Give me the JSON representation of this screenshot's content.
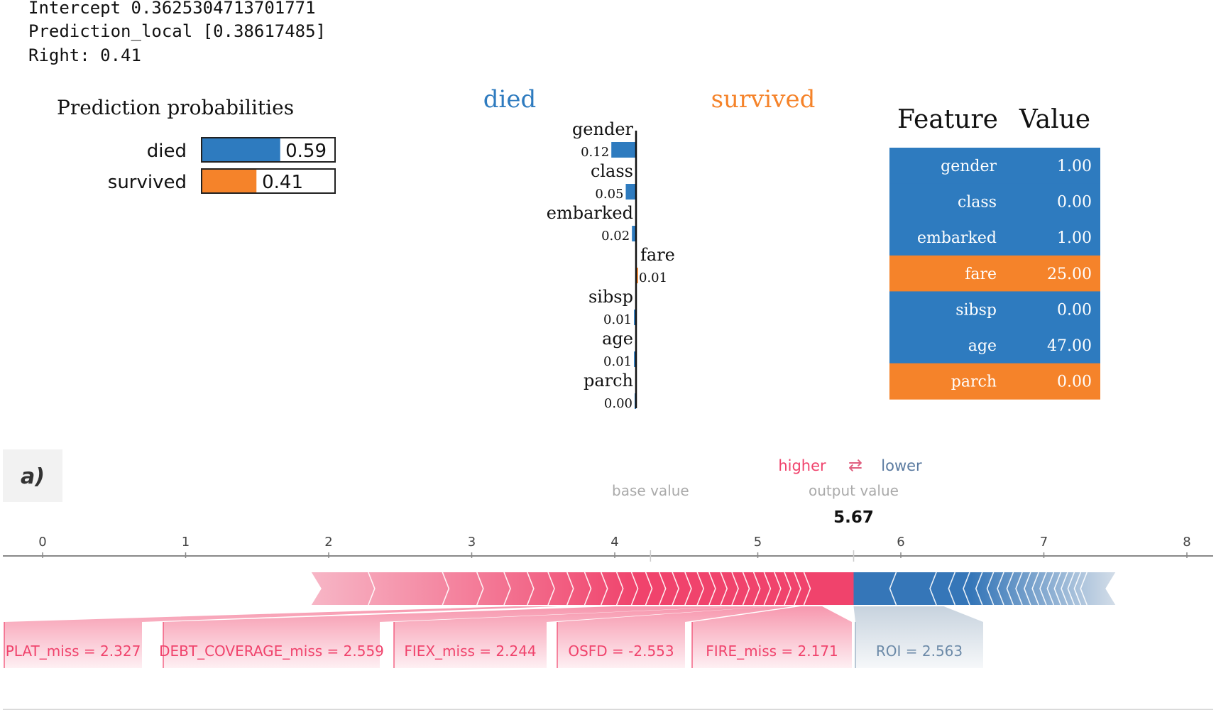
{
  "console": {
    "lines": [
      "Intercept 0.3625304713701771",
      "Prediction_local [0.38617485]",
      "Right: 0.41"
    ]
  },
  "colors": {
    "died": "#2e7bbf",
    "survived": "#f5832a",
    "shap_positive": "#f0436c",
    "shap_negative": "#3576b8"
  },
  "chart_data": [
    {
      "type": "bar",
      "title": "Prediction probabilities",
      "categories": [
        "died",
        "survived"
      ],
      "values": [
        0.59,
        0.41
      ],
      "value_labels": [
        "0.59",
        "0.41"
      ],
      "xlim": [
        0,
        1
      ]
    },
    {
      "type": "bar",
      "class_labels": [
        "died",
        "survived"
      ],
      "categories": [
        "gender",
        "class",
        "embarked",
        "fare",
        "sibsp",
        "age",
        "parch"
      ],
      "values": [
        -0.12,
        -0.05,
        -0.02,
        0.01,
        -0.01,
        -0.01,
        0.0
      ],
      "value_labels": [
        "0.12",
        "0.05",
        "0.02",
        "0.01",
        "0.01",
        "0.01",
        "0.00"
      ]
    },
    {
      "type": "table",
      "headers": [
        "Feature",
        "Value"
      ],
      "rows": [
        {
          "feature": "gender",
          "value": "1.00",
          "class": "died"
        },
        {
          "feature": "class",
          "value": "0.00",
          "class": "died"
        },
        {
          "feature": "embarked",
          "value": "1.00",
          "class": "died"
        },
        {
          "feature": "fare",
          "value": "25.00",
          "class": "survived"
        },
        {
          "feature": "sibsp",
          "value": "0.00",
          "class": "died"
        },
        {
          "feature": "age",
          "value": "47.00",
          "class": "died"
        },
        {
          "feature": "parch",
          "value": "0.00",
          "class": "survived"
        }
      ]
    },
    {
      "type": "bar",
      "panel_label": "a)",
      "legend": {
        "higher": "higher",
        "arrows": "⇄",
        "lower": "lower"
      },
      "base_value_label": "base value",
      "output_value_label": "output value",
      "output_value": 5.67,
      "output_value_text": "5.67",
      "base_value": 4.25,
      "xlim": [
        0,
        8
      ],
      "ticks": [
        0,
        1,
        2,
        3,
        4,
        5,
        6,
        7,
        8
      ],
      "positive_range": [
        1.88,
        5.67
      ],
      "negative_range": [
        5.67,
        7.5
      ],
      "features": [
        {
          "label": "PLAT_miss = 2.327",
          "effect": "positive"
        },
        {
          "label": "DEBT_COVERAGE_miss = 2.559",
          "effect": "positive"
        },
        {
          "label": "FIEX_miss = 2.244",
          "effect": "positive"
        },
        {
          "label": "OSFD = -2.553",
          "effect": "positive"
        },
        {
          "label": "FIRE_miss = 2.171",
          "effect": "positive"
        },
        {
          "label": "ROI = 2.563",
          "effect": "negative"
        }
      ]
    }
  ]
}
